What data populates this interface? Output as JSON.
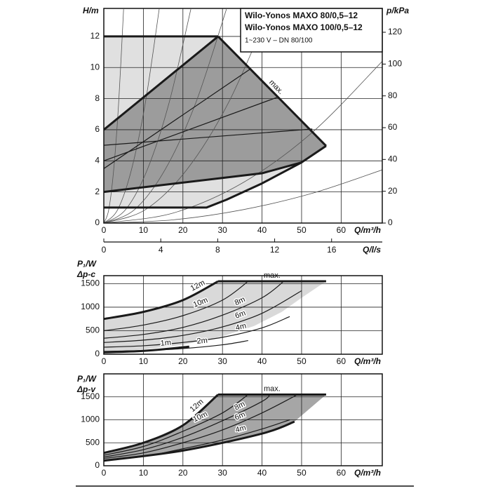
{
  "chart_data": [
    {
      "type": "line",
      "title": [
        "Wilo-Yonos MAXO 80/0,5–12",
        "Wilo-Yonos MAXO 100/0,5–12"
      ],
      "subtitle": "1~230 V – DN 80/100",
      "xlabel": "Q/m³/h",
      "x2label": "Q/l/s",
      "ylabel": "H/m",
      "y2label": "p/kPa",
      "xlim": [
        0,
        70.4
      ],
      "xticks": [
        0,
        10,
        20,
        30,
        40,
        50,
        60
      ],
      "x2lim": [
        0,
        19.56
      ],
      "x2ticks": [
        0,
        4,
        8,
        12,
        16
      ],
      "ylim": [
        0,
        13.8
      ],
      "yticks": [
        0,
        2,
        4,
        6,
        8,
        10,
        12
      ],
      "y2lim": [
        0,
        135
      ],
      "y2ticks": [
        0,
        20,
        40,
        60,
        80,
        100,
        120
      ],
      "grid": true,
      "regions": [
        {
          "color": "#e0e0e0",
          "x": [
            0,
            28.9,
            56.2,
            50,
            40,
            31,
            26,
            0
          ],
          "values": [
            12,
            12,
            4.96,
            3.9,
            2.55,
            1.5,
            1,
            1
          ]
        },
        {
          "color": "#9c9c9c",
          "x": [
            0,
            28.9,
            56.2,
            50,
            40,
            0
          ],
          "values": [
            6,
            12,
            4.96,
            3.9,
            3.2,
            2
          ]
        }
      ],
      "system_curves": {
        "color": "#555555",
        "curves": [
          {
            "x": [
              0,
              1.25,
              2.5,
              3.75,
              5
            ],
            "values": [
              0,
              0.86,
              3.44,
              7.73,
              13.75
            ]
          },
          {
            "x": [
              0,
              3.5,
              7,
              10.5,
              14
            ],
            "values": [
              0,
              0.86,
              3.44,
              7.73,
              13.75
            ]
          },
          {
            "x": [
              0,
              5.5,
              11,
              16.5,
              22
            ],
            "values": [
              0,
              0.86,
              3.44,
              7.73,
              13.75
            ]
          },
          {
            "x": [
              0,
              7.75,
              15.5,
              23.25,
              31
            ],
            "values": [
              0,
              0.86,
              3.44,
              7.73,
              13.75
            ]
          },
          {
            "x": [
              0,
              10.5,
              21,
              31.5,
              42
            ],
            "values": [
              0,
              0.86,
              3.44,
              7.73,
              13.75
            ]
          },
          {
            "x": [
              0,
              17.6,
              35.2,
              52.8,
              70.4
            ],
            "values": [
              0,
              0.65,
              2.6,
              5.85,
              10.4
            ]
          },
          {
            "x": [
              0,
              17.6,
              35.2,
              52.8,
              70.4
            ],
            "values": [
              0,
              0.21,
              0.86,
              1.92,
              3.42
            ]
          }
        ]
      },
      "series": [
        {
          "style": "thick",
          "color": "#1a1a1a",
          "x": [
            0,
            28.9
          ],
          "values": [
            12,
            12
          ]
        },
        {
          "style": "thick",
          "color": "#1a1a1a",
          "label": "max.",
          "x": [
            28.9,
            56.2
          ],
          "values": [
            12,
            4.96
          ]
        },
        {
          "style": "thick",
          "color": "#1a1a1a",
          "x": [
            56.2,
            50,
            40,
            31,
            26,
            0
          ],
          "values": [
            4.96,
            3.9,
            2.55,
            1.5,
            1,
            1
          ]
        },
        {
          "style": "thick",
          "color": "#1a1a1a",
          "x": [
            0,
            28.9
          ],
          "values": [
            6,
            12
          ]
        },
        {
          "style": "thick",
          "color": "#1a1a1a",
          "x": [
            0,
            40,
            50
          ],
          "values": [
            2,
            3.2,
            3.9
          ]
        },
        {
          "style": "thin",
          "color": "#1a1a1a",
          "x": [
            0,
            52.7
          ],
          "values": [
            5,
            6.05
          ]
        },
        {
          "style": "thin",
          "color": "#1a1a1a",
          "x": [
            0,
            44
          ],
          "values": [
            4,
            8.1
          ]
        },
        {
          "style": "thin",
          "color": "#1a1a1a",
          "x": [
            0,
            37
          ],
          "values": [
            3.5,
            9.9
          ]
        }
      ]
    },
    {
      "type": "line",
      "ylabel": [
        "P₁/W",
        "Δp-c"
      ],
      "xlabel": "Q/m³/h",
      "xlim": [
        0,
        70.4
      ],
      "xticks": [
        0,
        10,
        20,
        30,
        40,
        50,
        60
      ],
      "ylim": [
        0,
        1670
      ],
      "yticks": [
        0,
        500,
        1000,
        1500
      ],
      "grid": true,
      "regions": [
        {
          "color": "#d9d9d9",
          "x": [
            0,
            10,
            20,
            28.9,
            56.2,
            50,
            45,
            38,
            30,
            20,
            10,
            0
          ],
          "values": [
            750,
            900,
            1150,
            1550,
            1550,
            1200,
            900,
            600,
            380,
            200,
            100,
            40
          ]
        }
      ],
      "series": [
        {
          "style": "thick",
          "color": "#1a1a1a",
          "smooth": true,
          "label": "12m",
          "x": [
            0,
            10,
            20,
            28.9
          ],
          "values": [
            750,
            900,
            1150,
            1550
          ]
        },
        {
          "style": "thick",
          "color": "#1a1a1a",
          "label": "max.",
          "x": [
            28.9,
            56.2
          ],
          "values": [
            1550,
            1550
          ]
        },
        {
          "style": "thin",
          "color": "#1a1a1a",
          "smooth": true,
          "label": "10m",
          "x": [
            0,
            10,
            20,
            30,
            36.5
          ],
          "values": [
            500,
            620,
            820,
            1150,
            1550
          ]
        },
        {
          "style": "thin",
          "color": "#1a1a1a",
          "smooth": true,
          "label": "8m",
          "x": [
            0,
            10,
            20,
            30,
            40,
            45.5
          ],
          "values": [
            340,
            420,
            570,
            830,
            1200,
            1550
          ]
        },
        {
          "style": "thin",
          "color": "#1a1a1a",
          "smooth": true,
          "label": "6m",
          "x": [
            0,
            10,
            20,
            30,
            40,
            50
          ],
          "values": [
            250,
            300,
            400,
            580,
            870,
            1350
          ]
        },
        {
          "style": "thin",
          "color": "#1a1a1a",
          "smooth": true,
          "label": "4m",
          "x": [
            0,
            10,
            20,
            30,
            40,
            47
          ],
          "values": [
            150,
            180,
            250,
            360,
            560,
            800
          ]
        },
        {
          "style": "thin",
          "color": "#1a1a1a",
          "smooth": true,
          "label": "2m",
          "x": [
            0,
            10,
            20,
            30,
            36.5
          ],
          "values": [
            60,
            80,
            120,
            200,
            290
          ]
        },
        {
          "style": "thick",
          "color": "#1a1a1a",
          "smooth": true,
          "label": "1m",
          "x": [
            0,
            10,
            21.6
          ],
          "values": [
            40,
            70,
            160
          ]
        }
      ]
    },
    {
      "type": "line",
      "ylabel": [
        "P₁/W",
        "Δp-v"
      ],
      "xlabel": "Q/m³/h",
      "xlim": [
        0,
        70.4
      ],
      "xticks": [
        0,
        10,
        20,
        30,
        40,
        50,
        60
      ],
      "ylim": [
        0,
        2000
      ],
      "yticks": [
        0,
        500,
        1000,
        1500
      ],
      "grid": true,
      "regions": [
        {
          "color": "#a6a6a6",
          "x": [
            0,
            10,
            20,
            28.9,
            56.2,
            48.2,
            40,
            20,
            0
          ],
          "values": [
            280,
            500,
            880,
            1550,
            1550,
            960,
            700,
            330,
            110
          ]
        }
      ],
      "series": [
        {
          "style": "thick",
          "color": "#1a1a1a",
          "smooth": true,
          "label": "12m",
          "x": [
            0,
            10,
            20,
            28.9
          ],
          "values": [
            280,
            500,
            880,
            1550
          ]
        },
        {
          "style": "thick",
          "color": "#1a1a1a",
          "label": "max.",
          "x": [
            28.9,
            56.2
          ],
          "values": [
            1550,
            1550
          ]
        },
        {
          "style": "thin",
          "color": "#1a1a1a",
          "smooth": true,
          "label": "10m",
          "x": [
            0,
            10,
            20,
            30,
            36.5
          ],
          "values": [
            230,
            420,
            750,
            1150,
            1550
          ]
        },
        {
          "style": "thin",
          "color": "#1a1a1a",
          "smooth": true,
          "label": "8m",
          "x": [
            0,
            10,
            20,
            30,
            40,
            42
          ],
          "values": [
            190,
            350,
            620,
            980,
            1400,
            1550
          ]
        },
        {
          "style": "thin",
          "color": "#1a1a1a",
          "smooth": true,
          "label": "6m",
          "x": [
            0,
            10,
            20,
            30,
            40,
            49
          ],
          "values": [
            160,
            280,
            500,
            780,
            1150,
            1550
          ]
        },
        {
          "style": "thin",
          "color": "#1a1a1a",
          "smooth": true,
          "label": "4m",
          "x": [
            0,
            10,
            20,
            30,
            40,
            47
          ],
          "values": [
            120,
            200,
            370,
            560,
            800,
            1000
          ]
        },
        {
          "style": "thick",
          "color": "#1a1a1a",
          "smooth": true,
          "x": [
            0,
            20,
            40,
            48.2
          ],
          "values": [
            110,
            330,
            700,
            960
          ]
        }
      ]
    }
  ]
}
